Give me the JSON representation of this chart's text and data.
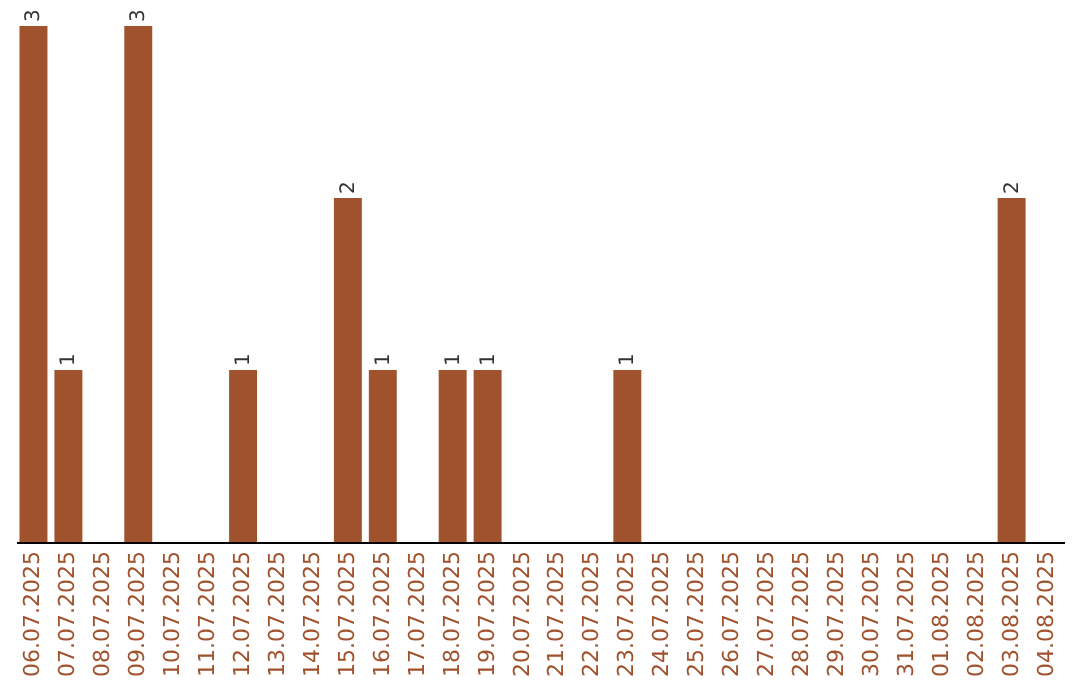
{
  "chart_data": {
    "type": "bar",
    "color": "#a0522d",
    "categories": [
      "06.07.2025",
      "07.07.2025",
      "08.07.2025",
      "09.07.2025",
      "10.07.2025",
      "11.07.2025",
      "12.07.2025",
      "13.07.2025",
      "14.07.2025",
      "15.07.2025",
      "16.07.2025",
      "17.07.2025",
      "18.07.2025",
      "19.07.2025",
      "20.07.2025",
      "21.07.2025",
      "22.07.2025",
      "23.07.2025",
      "24.07.2025",
      "25.07.2025",
      "26.07.2025",
      "27.07.2025",
      "28.07.2025",
      "29.07.2025",
      "30.07.2025",
      "31.07.2025",
      "01.08.2025",
      "02.08.2025",
      "03.08.2025",
      "04.08.2025"
    ],
    "values": [
      3,
      1,
      0,
      3,
      0,
      0,
      1,
      0,
      0,
      2,
      1,
      0,
      1,
      1,
      0,
      0,
      0,
      1,
      0,
      0,
      0,
      0,
      0,
      0,
      0,
      0,
      0,
      0,
      2,
      0
    ],
    "value_labels": [
      "3",
      "1",
      null,
      "3",
      null,
      null,
      "1",
      null,
      null,
      "2",
      "1",
      null,
      "1",
      "1",
      null,
      null,
      null,
      "1",
      null,
      null,
      null,
      null,
      null,
      null,
      null,
      null,
      null,
      null,
      "2",
      null
    ],
    "grid": false
  }
}
